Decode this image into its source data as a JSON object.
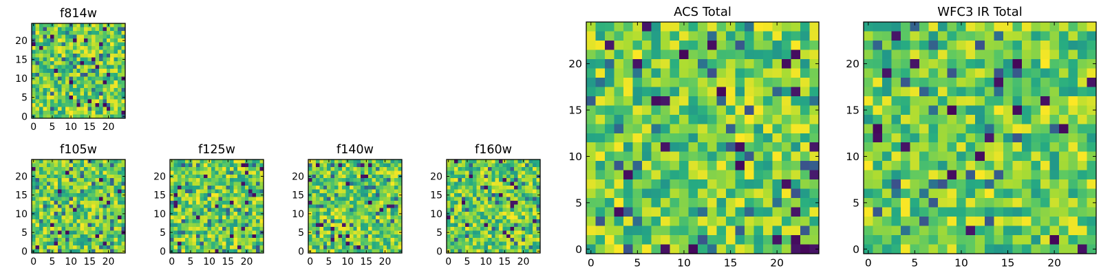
{
  "chart_data": [
    {
      "type": "heatmap",
      "title": "f814w",
      "grid_size": 25,
      "xticks": [
        0,
        5,
        10,
        15,
        20
      ],
      "yticks": [
        0,
        5,
        10,
        15,
        20
      ],
      "xlim": [
        -0.5,
        24.5
      ],
      "ylim": [
        -0.5,
        24.5
      ],
      "colormap": "viridis",
      "seed": 814
    },
    {
      "type": "heatmap",
      "title": "f105w",
      "grid_size": 25,
      "xticks": [
        0,
        5,
        10,
        15,
        20
      ],
      "yticks": [
        0,
        5,
        10,
        15,
        20
      ],
      "xlim": [
        -0.5,
        24.5
      ],
      "ylim": [
        -0.5,
        24.5
      ],
      "colormap": "viridis",
      "seed": 105
    },
    {
      "type": "heatmap",
      "title": "f125w",
      "grid_size": 25,
      "xticks": [
        0,
        5,
        10,
        15,
        20
      ],
      "yticks": [
        0,
        5,
        10,
        15,
        20
      ],
      "xlim": [
        -0.5,
        24.5
      ],
      "ylim": [
        -0.5,
        24.5
      ],
      "colormap": "viridis",
      "seed": 125
    },
    {
      "type": "heatmap",
      "title": "f140w",
      "grid_size": 25,
      "xticks": [
        0,
        5,
        10,
        15,
        20
      ],
      "yticks": [
        0,
        5,
        10,
        15,
        20
      ],
      "xlim": [
        -0.5,
        24.5
      ],
      "ylim": [
        -0.5,
        24.5
      ],
      "colormap": "viridis",
      "seed": 140
    },
    {
      "type": "heatmap",
      "title": "f160w",
      "grid_size": 25,
      "xticks": [
        0,
        5,
        10,
        15,
        20
      ],
      "yticks": [
        0,
        5,
        10,
        15,
        20
      ],
      "xlim": [
        -0.5,
        24.5
      ],
      "ylim": [
        -0.5,
        24.5
      ],
      "colormap": "viridis",
      "seed": 160
    },
    {
      "type": "heatmap",
      "title": "ACS Total",
      "grid_size": 25,
      "xticks": [
        0,
        5,
        10,
        15,
        20
      ],
      "yticks": [
        0,
        5,
        10,
        15,
        20
      ],
      "xlim": [
        -0.5,
        24.5
      ],
      "ylim": [
        -0.5,
        24.5
      ],
      "colormap": "viridis",
      "seed": 501
    },
    {
      "type": "heatmap",
      "title": "WFC3 IR Total",
      "grid_size": 25,
      "xticks": [
        0,
        5,
        10,
        15,
        20
      ],
      "yticks": [
        0,
        5,
        10,
        15,
        20
      ],
      "xlim": [
        -0.5,
        24.5
      ],
      "ylim": [
        -0.5,
        24.5
      ],
      "colormap": "viridis",
      "seed": 902
    }
  ]
}
